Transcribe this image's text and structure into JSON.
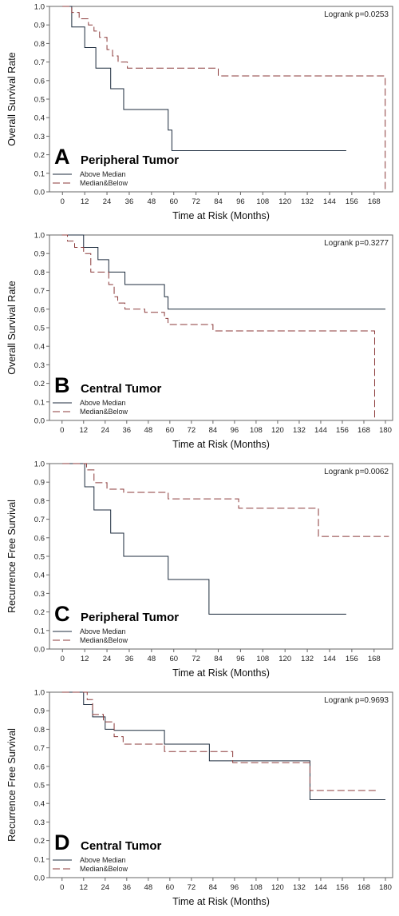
{
  "colors": {
    "above": "#1c2b3d",
    "below": "#8b3a3a",
    "frame": "#666666"
  },
  "chart_data": [
    {
      "type": "line",
      "panel_letter": "A",
      "title": "Peripheral Tumor",
      "ylabel": "Overall Survival Rate",
      "xlabel": "Time at Risk (Months)",
      "logrank": "Logrank p=0.0253",
      "xlim": [
        -7,
        178
      ],
      "ylim": [
        0,
        1
      ],
      "xticks": [
        0,
        12,
        24,
        36,
        48,
        60,
        72,
        84,
        96,
        108,
        120,
        132,
        144,
        156,
        168
      ],
      "yticks": [
        "0.0",
        "0.1",
        "0.2",
        "0.3",
        "0.4",
        "0.5",
        "0.6",
        "0.7",
        "0.8",
        "0.9",
        "1.0"
      ],
      "legend": [
        "Above Median",
        "Median&Below"
      ],
      "series": [
        {
          "name": "Above Median",
          "style": "solid",
          "x": [
            0,
            5,
            12,
            18,
            26,
            33,
            57,
            59,
            153
          ],
          "y": [
            1.0,
            0.889,
            0.778,
            0.667,
            0.556,
            0.444,
            0.333,
            0.222,
            0.222
          ]
        },
        {
          "name": "Median&Below",
          "style": "dashed",
          "x": [
            0,
            5,
            9,
            14,
            17,
            20,
            24,
            27,
            30,
            35,
            84,
            174,
            174
          ],
          "y": [
            1.0,
            0.967,
            0.933,
            0.9,
            0.867,
            0.833,
            0.767,
            0.733,
            0.7,
            0.667,
            0.625,
            0.625,
            0.0
          ]
        }
      ]
    },
    {
      "type": "line",
      "panel_letter": "B",
      "title": "Central Tumor",
      "ylabel": "Overall Survival Rate",
      "xlabel": "Time at Risk (Months)",
      "logrank": "Logrank p=0.3277",
      "xlim": [
        -7,
        184
      ],
      "ylim": [
        0,
        1
      ],
      "xticks": [
        0,
        12,
        24,
        36,
        48,
        60,
        72,
        84,
        96,
        108,
        120,
        132,
        144,
        156,
        168,
        180
      ],
      "yticks": [
        "0.0",
        "0.1",
        "0.2",
        "0.3",
        "0.4",
        "0.5",
        "0.6",
        "0.7",
        "0.8",
        "0.9",
        "1.0"
      ],
      "legend": [
        "Above Median",
        "Median&Below"
      ],
      "series": [
        {
          "name": "Above Median",
          "style": "solid",
          "x": [
            0,
            12,
            20,
            26,
            35,
            57,
            59,
            180
          ],
          "y": [
            1.0,
            0.933,
            0.867,
            0.8,
            0.733,
            0.667,
            0.6,
            0.6
          ]
        },
        {
          "name": "Median&Below",
          "style": "dashed",
          "x": [
            0,
            3,
            7,
            12,
            16,
            26,
            29,
            31,
            35,
            46,
            57,
            59,
            84,
            174,
            174
          ],
          "y": [
            1.0,
            0.967,
            0.933,
            0.9,
            0.8,
            0.733,
            0.667,
            0.633,
            0.6,
            0.583,
            0.55,
            0.517,
            0.483,
            0.483,
            0.0
          ]
        }
      ]
    },
    {
      "type": "line",
      "panel_letter": "C",
      "title": "Peripheral Tumor",
      "ylabel": "Recurrence Free Survival",
      "xlabel": "Time at Risk (Months)",
      "logrank": "Logrank p=0.0062",
      "xlim": [
        -7,
        178
      ],
      "ylim": [
        0,
        1
      ],
      "xticks": [
        0,
        12,
        24,
        36,
        48,
        60,
        72,
        84,
        96,
        108,
        120,
        132,
        144,
        156,
        168
      ],
      "yticks": [
        "0.0",
        "0.1",
        "0.2",
        "0.3",
        "0.4",
        "0.5",
        "0.6",
        "0.7",
        "0.8",
        "0.9",
        "1.0"
      ],
      "legend": [
        "Above Median",
        "Median&Below"
      ],
      "series": [
        {
          "name": "Above Median",
          "style": "solid",
          "x": [
            0,
            12,
            17,
            26,
            33,
            57,
            79,
            153
          ],
          "y": [
            1.0,
            0.875,
            0.75,
            0.625,
            0.5,
            0.375,
            0.188,
            0.188
          ]
        },
        {
          "name": "Median&Below",
          "style": "dashed",
          "x": [
            0,
            13,
            17,
            24,
            33,
            57,
            95,
            138,
            176
          ],
          "y": [
            1.0,
            0.966,
            0.897,
            0.862,
            0.845,
            0.81,
            0.759,
            0.607,
            0.607
          ]
        }
      ]
    },
    {
      "type": "line",
      "panel_letter": "D",
      "title": "Central Tumor",
      "ylabel": "Recurrence Free Survival",
      "xlabel": "Time at Risk (Months)",
      "logrank": "Logrank p=0.9693",
      "xlim": [
        -7,
        184
      ],
      "ylim": [
        0,
        1
      ],
      "xticks": [
        0,
        12,
        24,
        36,
        48,
        60,
        72,
        84,
        96,
        108,
        120,
        132,
        144,
        156,
        168,
        180
      ],
      "yticks": [
        "0.0",
        "0.1",
        "0.2",
        "0.3",
        "0.4",
        "0.5",
        "0.6",
        "0.7",
        "0.8",
        "0.9",
        "1.0"
      ],
      "legend": [
        "Above Median",
        "Median&Below"
      ],
      "series": [
        {
          "name": "Above Median",
          "style": "solid",
          "x": [
            0,
            12,
            17,
            24,
            29,
            57,
            82,
            137,
            138,
            180
          ],
          "y": [
            1.0,
            0.933,
            0.867,
            0.8,
            0.794,
            0.72,
            0.63,
            0.63,
            0.42,
            0.42
          ]
        },
        {
          "name": "Median&Below",
          "style": "dashed",
          "x": [
            0,
            14,
            17,
            23,
            29,
            34,
            57,
            95,
            134,
            138,
            176
          ],
          "y": [
            1.0,
            0.96,
            0.88,
            0.84,
            0.76,
            0.72,
            0.68,
            0.62,
            0.62,
            0.47,
            0.47
          ]
        }
      ]
    }
  ]
}
